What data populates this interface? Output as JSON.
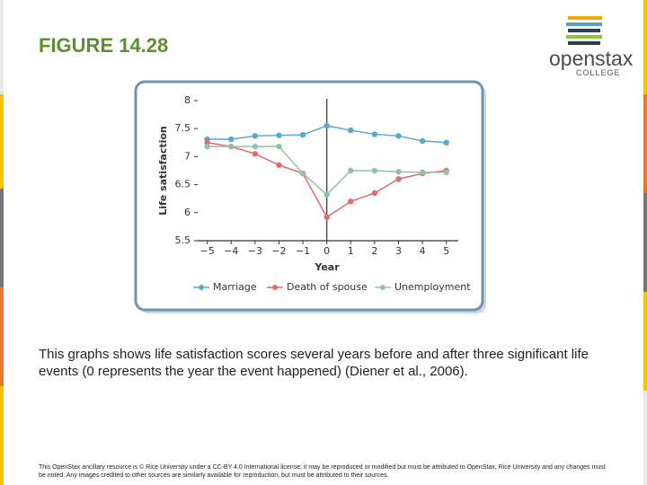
{
  "slide": {
    "title": "FIGURE 14.28",
    "logo": {
      "name": "openstax",
      "sub": "COLLEGE"
    },
    "caption": "This graphs shows life satisfaction scores several years before and after three significant life events (0 represents the year the event happened) (Diener et al., 2006).",
    "footer": "This OpenStax ancillary resource is © Rice University under a CC-BY 4.0 International license; it may be reproduced or modified but must be attributed to OpenStax, Rice University and any changes must be noted. Any images credited to other sources are similarly available for reproduction, but must be attributed to their sources."
  },
  "chart_data": {
    "type": "line",
    "x_label": "Year",
    "y_label": "Life satisfaction",
    "x": [
      -5,
      -4,
      -3,
      -2,
      -1,
      0,
      1,
      2,
      3,
      4,
      5
    ],
    "series": [
      {
        "name": "Marriage",
        "color": "#5aa7d0",
        "values": [
          7.31,
          7.31,
          7.37,
          7.38,
          7.39,
          7.55,
          7.47,
          7.4,
          7.37,
          7.28,
          7.25
        ]
      },
      {
        "name": "Death of spouse",
        "color": "#e06c6c",
        "values": [
          7.25,
          7.18,
          7.05,
          6.85,
          6.7,
          5.92,
          6.2,
          6.35,
          6.6,
          6.7,
          6.75
        ]
      },
      {
        "name": "Unemployment",
        "color": "#8fc3a8",
        "values": [
          7.18,
          7.18,
          7.18,
          7.18,
          6.7,
          6.32,
          6.75,
          6.75,
          6.73,
          6.72,
          6.72
        ]
      }
    ],
    "xlim": [
      -5.4,
      5.5
    ],
    "ylim": [
      5.5,
      8
    ],
    "xticks": [
      {
        "value": -5,
        "label": "−5"
      },
      {
        "value": -4,
        "label": "−4"
      },
      {
        "value": -3,
        "label": "−3"
      },
      {
        "value": -2,
        "label": "−2"
      },
      {
        "value": -1,
        "label": "−1"
      },
      0,
      1,
      2,
      3,
      4,
      5
    ],
    "yticks": [
      5.5,
      6,
      6.5,
      7,
      7.5,
      8
    ],
    "reference_line_x": 0,
    "legend": "bottom"
  }
}
